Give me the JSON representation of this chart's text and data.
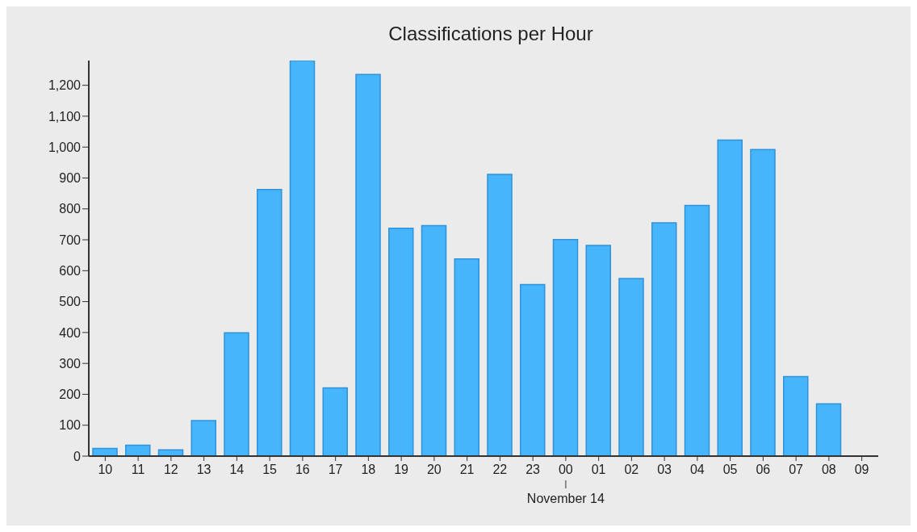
{
  "chart_data": {
    "type": "bar",
    "title": "Classifications per Hour",
    "categories": [
      "10",
      "11",
      "12",
      "13",
      "14",
      "15",
      "16",
      "17",
      "18",
      "19",
      "20",
      "21",
      "22",
      "23",
      "00",
      "01",
      "02",
      "03",
      "04",
      "05",
      "06",
      "07",
      "08",
      "09"
    ],
    "values": [
      25,
      35,
      20,
      115,
      399,
      863,
      1280,
      221,
      1235,
      737,
      746,
      638,
      912,
      555,
      701,
      682,
      575,
      755,
      811,
      1023,
      992,
      257,
      169,
      null
    ],
    "color": "#47b5fb",
    "ylim": [
      0,
      1280
    ],
    "yticks": [
      0,
      100,
      200,
      300,
      400,
      500,
      600,
      700,
      800,
      900,
      {
        "value": 1000,
        "label": "1,000"
      },
      {
        "value": 1100,
        "label": "1,100"
      },
      {
        "value": 1200,
        "label": "1,200"
      }
    ],
    "grid": false,
    "annotations": [
      {
        "text": "November 14",
        "x": "00"
      }
    ]
  }
}
